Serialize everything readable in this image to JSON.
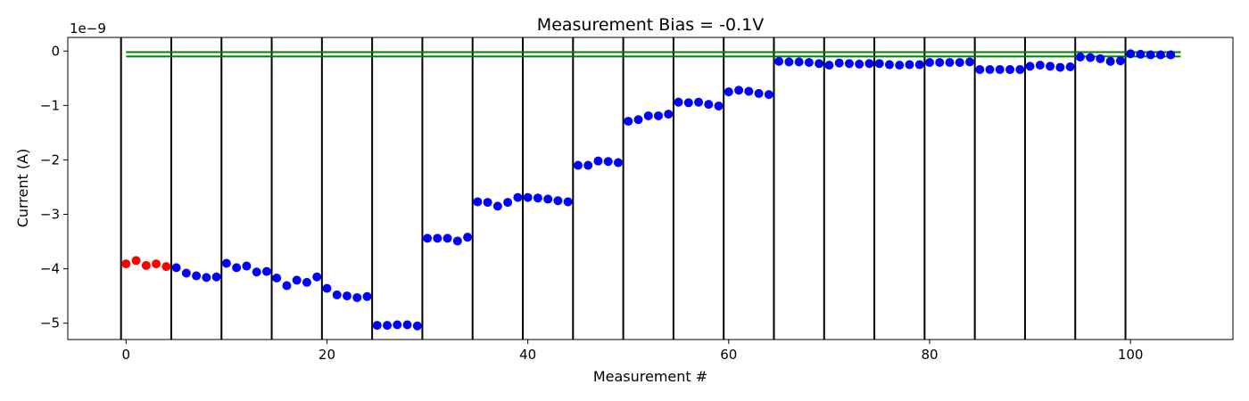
{
  "chart_data": {
    "type": "scatter",
    "title": "Measurement Bias = -0.1V",
    "xlabel": "Measurement #",
    "ylabel": "Current (A)",
    "y_offset_label": "1e−9",
    "xlim": [
      -5.8,
      110.2
    ],
    "ylim": [
      -5.3,
      0.25
    ],
    "x_ticks": [
      0,
      20,
      40,
      60,
      80,
      100
    ],
    "x_tick_labels": [
      "0",
      "20",
      "40",
      "60",
      "80",
      "100"
    ],
    "y_ticks": [
      0,
      -1,
      -2,
      -3,
      -4,
      -5
    ],
    "y_tick_labels": [
      "0",
      "−1",
      "−2",
      "−3",
      "−4",
      "−5"
    ],
    "grid": false,
    "y_unit_scale": 1e-09,
    "group_separators_x": [
      -0.5,
      4.5,
      9.5,
      14.5,
      19.5,
      24.5,
      29.5,
      34.5,
      39.5,
      44.5,
      49.5,
      54.5,
      59.5,
      64.5,
      69.5,
      74.5,
      79.5,
      84.5,
      89.5,
      94.5,
      99.5
    ],
    "reference_lines": [
      {
        "y": -0.02,
        "x_range": [
          0,
          105
        ],
        "color": "#008000"
      },
      {
        "y": -0.1,
        "x_range": [
          0,
          105
        ],
        "color": "#008000"
      }
    ],
    "series": [
      {
        "color": "#ff0000",
        "x": [
          0,
          1,
          2,
          3,
          4
        ],
        "y": [
          -3.91,
          -3.85,
          -3.94,
          -3.91,
          -3.96
        ]
      },
      {
        "color": "#0000ff",
        "x": [
          5,
          6,
          7,
          8,
          9,
          10,
          11,
          12,
          13,
          14,
          15,
          16,
          17,
          18,
          19,
          20,
          21,
          22,
          23,
          24,
          25,
          26,
          27,
          28,
          29,
          30,
          31,
          32,
          33,
          34,
          35,
          36,
          37,
          38,
          39,
          40,
          41,
          42,
          43,
          44,
          45,
          46,
          47,
          48,
          49,
          50,
          51,
          52,
          53,
          54,
          55,
          56,
          57,
          58,
          59,
          60,
          61,
          62,
          63,
          64,
          65,
          66,
          67,
          68,
          69,
          70,
          71,
          72,
          73,
          74,
          75,
          76,
          77,
          78,
          79,
          80,
          81,
          82,
          83,
          84,
          85,
          86,
          87,
          88,
          89,
          90,
          91,
          92,
          93,
          94,
          95,
          96,
          97,
          98,
          99,
          100,
          101,
          102,
          103,
          104
        ],
        "y": [
          -3.98,
          -4.08,
          -4.13,
          -4.16,
          -4.15,
          -3.9,
          -3.98,
          -3.95,
          -4.06,
          -4.05,
          -4.17,
          -4.31,
          -4.21,
          -4.25,
          -4.15,
          -4.36,
          -4.48,
          -4.5,
          -4.53,
          -4.51,
          -5.04,
          -5.04,
          -5.03,
          -5.03,
          -5.05,
          -3.44,
          -3.44,
          -3.44,
          -3.49,
          -3.42,
          -2.77,
          -2.78,
          -2.85,
          -2.78,
          -2.69,
          -2.69,
          -2.7,
          -2.72,
          -2.75,
          -2.77,
          -2.1,
          -2.1,
          -2.02,
          -2.03,
          -2.05,
          -1.29,
          -1.26,
          -1.19,
          -1.19,
          -1.16,
          -0.94,
          -0.95,
          -0.94,
          -0.98,
          -1.01,
          -0.75,
          -0.72,
          -0.74,
          -0.78,
          -0.8,
          -0.19,
          -0.2,
          -0.2,
          -0.21,
          -0.23,
          -0.26,
          -0.22,
          -0.23,
          -0.24,
          -0.23,
          -0.23,
          -0.25,
          -0.26,
          -0.25,
          -0.25,
          -0.21,
          -0.21,
          -0.21,
          -0.21,
          -0.2,
          -0.34,
          -0.34,
          -0.34,
          -0.34,
          -0.34,
          -0.28,
          -0.26,
          -0.28,
          -0.3,
          -0.29,
          -0.11,
          -0.12,
          -0.14,
          -0.19,
          -0.18,
          -0.05,
          -0.06,
          -0.07,
          -0.07,
          -0.07
        ]
      }
    ]
  }
}
